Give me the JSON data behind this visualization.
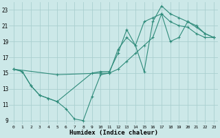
{
  "xlabel": "Humidex (Indice chaleur)",
  "background_color": "#cce8e8",
  "grid_color": "#aacfcf",
  "line_color": "#2e8b7a",
  "xlim": [
    -0.5,
    23.5
  ],
  "ylim": [
    8.5,
    24.0
  ],
  "yticks": [
    9,
    11,
    13,
    15,
    17,
    19,
    21,
    23
  ],
  "xticks": [
    0,
    1,
    2,
    3,
    4,
    5,
    6,
    7,
    8,
    9,
    10,
    11,
    12,
    13,
    14,
    15,
    16,
    17,
    18,
    19,
    20,
    21,
    22,
    23
  ],
  "series1_x": [
    0,
    1,
    2,
    3,
    4,
    5,
    6,
    7,
    8,
    9,
    10,
    11,
    12,
    13,
    14,
    15,
    16,
    17,
    18,
    19,
    20,
    21,
    22,
    23
  ],
  "series1_y": [
    15.5,
    15.2,
    13.4,
    12.2,
    11.8,
    11.4,
    10.5,
    9.2,
    9.0,
    12.0,
    14.8,
    15.0,
    18.0,
    19.5,
    18.5,
    21.5,
    22.0,
    22.5,
    21.5,
    21.0,
    20.8,
    20.0,
    19.5,
    19.5
  ],
  "series2_x": [
    0,
    1,
    2,
    3,
    4,
    5,
    9,
    10,
    11,
    12,
    13,
    14,
    15,
    16,
    17,
    18,
    19,
    20,
    21,
    22,
    23
  ],
  "series2_y": [
    15.5,
    15.2,
    13.4,
    12.2,
    11.8,
    11.4,
    15.0,
    15.2,
    15.2,
    17.5,
    20.5,
    18.5,
    15.2,
    21.5,
    23.5,
    22.5,
    22.0,
    21.5,
    20.8,
    20.0,
    19.5
  ],
  "series3_x": [
    0,
    5,
    10,
    11,
    12,
    13,
    14,
    15,
    16,
    17,
    18,
    19,
    20,
    21,
    22,
    23
  ],
  "series3_y": [
    15.5,
    14.8,
    15.0,
    15.0,
    15.5,
    16.5,
    17.5,
    18.5,
    19.5,
    22.5,
    19.0,
    19.5,
    21.5,
    21.0,
    20.0,
    19.5
  ]
}
